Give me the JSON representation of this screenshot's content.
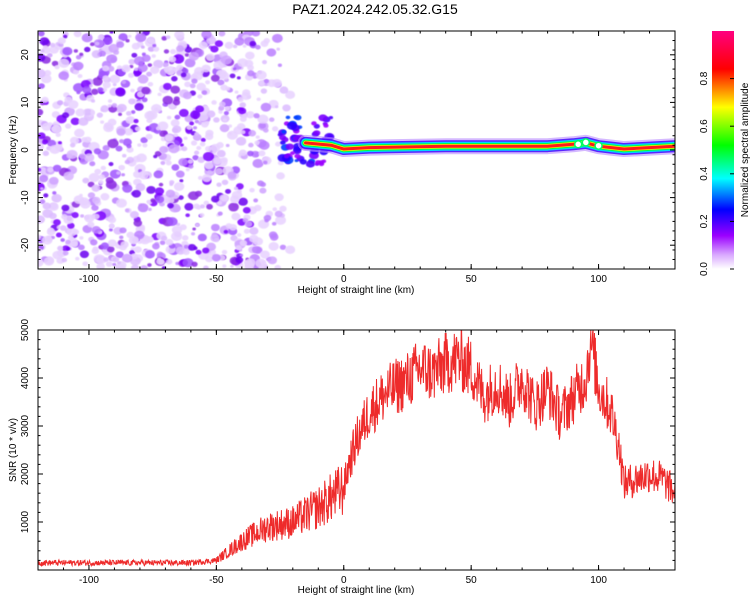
{
  "title": "PAZ1.2024.242.05.32.G15",
  "colors": {
    "snr_line": "#ee2b2b",
    "ridge_core": "#ff1a1a"
  },
  "chart_data": [
    {
      "type": "heatmap",
      "xlabel": "Height of straight line (km)",
      "ylabel": "Frequency (Hz)",
      "xlim": [
        -120,
        130
      ],
      "ylim": [
        -25,
        25
      ],
      "xticks": [
        -100,
        -50,
        0,
        50,
        100
      ],
      "yticks": [
        -20,
        -10,
        0,
        10,
        20
      ],
      "colorbar": {
        "label": "Normalized spectral amplitude",
        "range": [
          0,
          1
        ],
        "ticks": [
          "0.0",
          "0.2",
          "0.4",
          "0.6",
          "0.8"
        ],
        "colors": [
          "#ffffff",
          "#9b00ff",
          "#0000ff",
          "#00ffff",
          "#00ff00",
          "#ffff00",
          "#ff0000",
          "#ff0080"
        ]
      },
      "ridge": {
        "description_points_x": [
          -15,
          -5,
          0,
          10,
          40,
          80,
          90,
          95,
          100,
          105,
          110,
          120,
          130
        ],
        "description_points_y": [
          1.5,
          1.0,
          0.2,
          0.5,
          0.8,
          0.8,
          1.2,
          1.5,
          0.8,
          0.5,
          0.2,
          0.5,
          0.8
        ],
        "noise_x_range": [
          -120,
          -30
        ],
        "transition_x_range": [
          -25,
          -5
        ]
      }
    },
    {
      "type": "line",
      "xlabel": "Height of straight line (km)",
      "ylabel": "SNR (10 * v/v)",
      "xlim": [
        -120,
        130
      ],
      "ylim": [
        0,
        5000
      ],
      "xticks": [
        -100,
        -50,
        0,
        50,
        100
      ],
      "yticks": [
        1000,
        2000,
        3000,
        4000,
        5000
      ],
      "series": [
        {
          "x": [
            -120,
            -100,
            -80,
            -60,
            -50,
            -45,
            -40,
            -30,
            -20,
            -10,
            -5,
            0,
            2,
            5,
            10,
            15,
            20,
            25,
            30,
            35,
            40,
            45,
            50,
            55,
            60,
            65,
            70,
            75,
            80,
            85,
            90,
            95,
            97,
            100,
            105,
            108,
            110,
            115,
            120,
            125,
            130
          ],
          "values": [
            150,
            150,
            150,
            150,
            200,
            400,
            600,
            900,
            1000,
            1300,
            1500,
            1700,
            2200,
            2700,
            3300,
            3600,
            3800,
            3950,
            4200,
            4100,
            4300,
            4400,
            4200,
            3600,
            3900,
            3500,
            4000,
            3400,
            3800,
            3200,
            3600,
            4000,
            4800,
            3800,
            3300,
            2600,
            1800,
            1900,
            2000,
            1900,
            1600
          ]
        }
      ]
    }
  ]
}
